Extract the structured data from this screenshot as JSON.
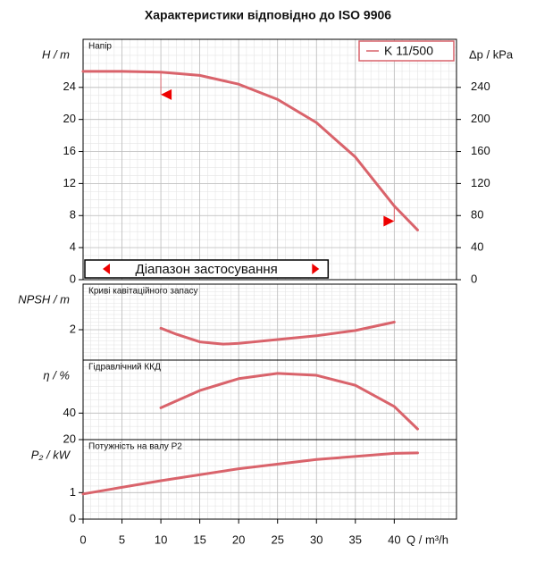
{
  "title": "Характеристики відповідно до ISO 9906",
  "chart_data": [
    {
      "type": "line",
      "panel_title": "Напір",
      "ylabel": "H / m",
      "y2label": "Δp / kPa",
      "ylim": [
        0,
        30
      ],
      "yticks": [
        0,
        4,
        8,
        12,
        16,
        20,
        24
      ],
      "y2lim": [
        0,
        300
      ],
      "y2ticks": [
        0,
        40,
        80,
        120,
        160,
        200,
        240
      ],
      "legend": "upper right",
      "grid": true,
      "series": [
        {
          "name": "K 11/500",
          "color": "#d9636b",
          "x": [
            0,
            5,
            10,
            15,
            20,
            25,
            30,
            35,
            40,
            43
          ],
          "values": [
            26,
            26,
            25.9,
            25.5,
            24.4,
            22.5,
            19.6,
            15.3,
            9.2,
            6.2
          ]
        }
      ],
      "markers": [
        {
          "x": 10,
          "y": 23.1
        },
        {
          "x": 40,
          "y": 7.3
        }
      ],
      "range": {
        "label": "Діапазон застосування",
        "x": [
          0,
          31.5
        ]
      }
    },
    {
      "type": "line",
      "panel_title": "Криві кавітаційного запасу",
      "ylabel": "NPSH / m",
      "ylim": [
        0,
        5
      ],
      "yticks": [
        2
      ],
      "grid": true,
      "series": [
        {
          "color": "#d9636b",
          "x": [
            10,
            12,
            15,
            18,
            20,
            25,
            30,
            35,
            40
          ],
          "values": [
            2.1,
            1.7,
            1.2,
            1.05,
            1.1,
            1.35,
            1.6,
            1.95,
            2.5
          ]
        }
      ]
    },
    {
      "type": "line",
      "panel_title": "Гідравлічний ККД",
      "ylabel": "η / %",
      "ylim": [
        20,
        80
      ],
      "yticks": [
        20,
        40
      ],
      "grid": true,
      "series": [
        {
          "color": "#d9636b",
          "x": [
            10,
            15,
            20,
            25,
            30,
            35,
            40,
            43
          ],
          "values": [
            44,
            57,
            66,
            70,
            68.5,
            61,
            45,
            28
          ]
        }
      ]
    },
    {
      "type": "line",
      "panel_title": "Потужність на валу P2",
      "ylabel": "P₂ / kW",
      "ylim": [
        0,
        3
      ],
      "yticks": [
        0,
        1
      ],
      "grid": true,
      "xlim": [
        0,
        48
      ],
      "xticks": [
        0,
        5,
        10,
        15,
        20,
        25,
        30,
        35,
        40
      ],
      "xlabel": "Q / m³/h",
      "series": [
        {
          "color": "#d9636b",
          "x": [
            0,
            10,
            20,
            30,
            40,
            43
          ],
          "values": [
            0.95,
            1.45,
            1.9,
            2.25,
            2.48,
            2.5
          ]
        }
      ]
    }
  ]
}
